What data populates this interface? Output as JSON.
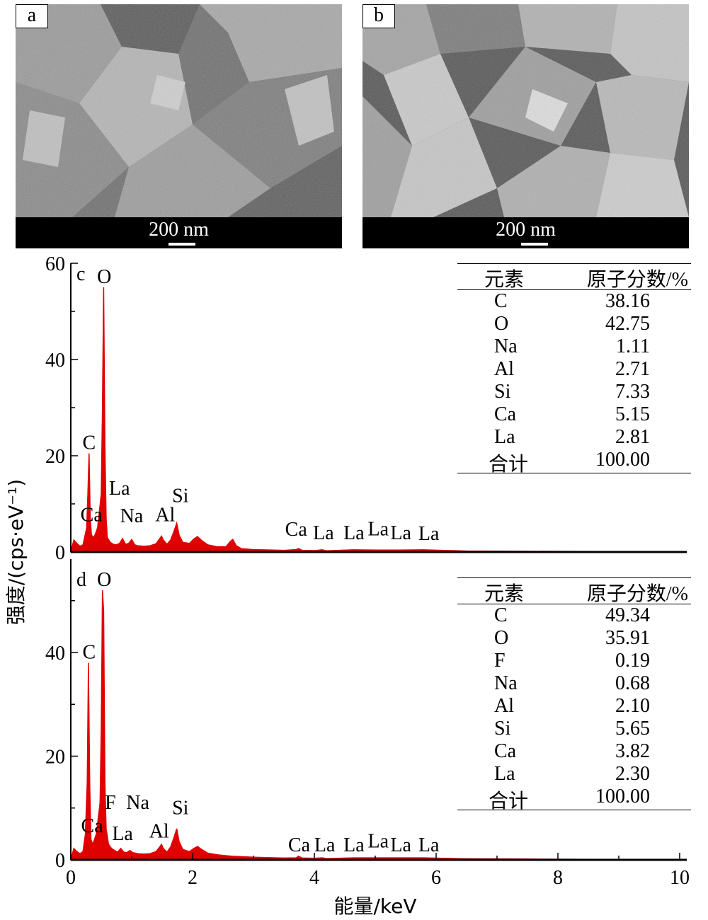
{
  "sem_panels": [
    {
      "label": "a",
      "scale_text": "200 nm"
    },
    {
      "label": "b",
      "scale_text": "200 nm"
    }
  ],
  "y_axis_label": "强度/(cps·eV⁻¹)",
  "x_axis_label": "能量/keV",
  "chart_data": [
    {
      "type": "area",
      "panel": "c",
      "x": [
        0,
        0.05,
        0.1,
        0.15,
        0.2,
        0.26,
        0.28,
        0.3,
        0.32,
        0.34,
        0.38,
        0.44,
        0.5,
        0.52,
        0.54,
        0.56,
        0.58,
        0.6,
        0.65,
        0.7,
        0.75,
        0.8,
        0.85,
        0.9,
        0.95,
        1.0,
        1.05,
        1.1,
        1.2,
        1.3,
        1.4,
        1.46,
        1.49,
        1.52,
        1.58,
        1.64,
        1.7,
        1.74,
        1.78,
        1.84,
        1.95,
        2.02,
        2.08,
        2.15,
        2.25,
        2.4,
        2.55,
        2.62,
        2.66,
        2.72,
        2.8,
        3.0,
        3.5,
        3.7,
        3.74,
        3.8,
        4.0,
        4.13,
        4.2,
        4.65,
        5.04,
        5.39,
        5.79,
        6.5,
        7.5,
        8.5,
        9.5,
        10
      ],
      "y": [
        0,
        2.5,
        1.8,
        1.2,
        1.5,
        5,
        12,
        20.5,
        7,
        3.5,
        3,
        5,
        12,
        30,
        55,
        22,
        7,
        3,
        2,
        1.6,
        1.5,
        1.8,
        2.8,
        1.6,
        1.8,
        2.6,
        1.5,
        1.3,
        1.2,
        1.3,
        1.7,
        2.8,
        3.3,
        2.5,
        1.6,
        2.5,
        4.5,
        6,
        3.5,
        2,
        1.8,
        2.7,
        3.2,
        2.4,
        1.5,
        1.1,
        1.1,
        2.2,
        2.6,
        1.3,
        0.7,
        0.5,
        0.35,
        0.5,
        0.7,
        0.35,
        0.3,
        0.45,
        0.25,
        0.45,
        0.4,
        0.4,
        0.45,
        0.2,
        0.15,
        0.1,
        0.05,
        0
      ],
      "xlim": [
        0,
        10
      ],
      "ylim": [
        0,
        60
      ],
      "yticks": [
        0,
        20,
        40,
        60
      ],
      "color": "#e00000",
      "annotations": [
        {
          "text": "O",
          "x": 0.55,
          "y": 55
        },
        {
          "text": "C",
          "x": 0.3,
          "y": 20.5
        },
        {
          "text": "La",
          "x": 0.8,
          "y": 11
        },
        {
          "text": "Ca",
          "x": 0.34,
          "y": 5.5
        },
        {
          "text": "Na",
          "x": 1.0,
          "y": 5.3
        },
        {
          "text": "Al",
          "x": 1.55,
          "y": 5.5
        },
        {
          "text": "Si",
          "x": 1.8,
          "y": 9.5
        },
        {
          "text": "Ca",
          "x": 3.7,
          "y": 2.5
        },
        {
          "text": "La",
          "x": 4.15,
          "y": 1.8
        },
        {
          "text": "La",
          "x": 4.65,
          "y": 1.8
        },
        {
          "text": "La",
          "x": 5.05,
          "y": 2.6
        },
        {
          "text": "La",
          "x": 5.42,
          "y": 1.8
        },
        {
          "text": "La",
          "x": 5.88,
          "y": 1.6
        }
      ],
      "table": {
        "headers": [
          "元素",
          "原子分数/%"
        ],
        "rows": [
          [
            "C",
            "38.16"
          ],
          [
            "O",
            "42.75"
          ],
          [
            "Na",
            "1.11"
          ],
          [
            "Al",
            "2.71"
          ],
          [
            "Si",
            "7.33"
          ],
          [
            "Ca",
            "5.15"
          ],
          [
            "La",
            "2.81"
          ]
        ],
        "total": [
          "合计",
          "100.00"
        ]
      }
    },
    {
      "type": "area",
      "panel": "d",
      "x": [
        0,
        0.05,
        0.1,
        0.15,
        0.2,
        0.24,
        0.27,
        0.29,
        0.31,
        0.33,
        0.36,
        0.42,
        0.48,
        0.5,
        0.52,
        0.54,
        0.56,
        0.58,
        0.62,
        0.67,
        0.72,
        0.77,
        0.82,
        0.87,
        0.92,
        0.97,
        1.02,
        1.1,
        1.2,
        1.3,
        1.4,
        1.46,
        1.49,
        1.52,
        1.58,
        1.64,
        1.7,
        1.74,
        1.78,
        1.84,
        1.95,
        2.02,
        2.08,
        2.15,
        2.25,
        2.4,
        2.55,
        2.65,
        3.0,
        3.5,
        3.7,
        3.74,
        3.8,
        4.0,
        4.13,
        4.2,
        4.65,
        5.04,
        5.39,
        5.79,
        6.5,
        7.5,
        8.5,
        9.5,
        10
      ],
      "y": [
        0,
        2.2,
        1.6,
        1.2,
        1.6,
        5,
        15,
        38,
        15,
        4,
        3,
        5,
        11,
        25,
        52,
        48,
        15,
        6,
        3,
        2.2,
        1.8,
        1.5,
        2.2,
        1.5,
        1.4,
        1.8,
        1.4,
        1.2,
        1.1,
        1.2,
        1.6,
        2.5,
        3,
        2.2,
        1.5,
        2.5,
        4.5,
        6,
        3.5,
        2,
        1.6,
        2.2,
        2.6,
        2,
        1.3,
        1.0,
        0.8,
        0.7,
        0.5,
        0.35,
        0.4,
        0.7,
        0.35,
        0.3,
        0.4,
        0.25,
        0.4,
        0.4,
        0.4,
        0.4,
        0.2,
        0.15,
        0.1,
        0.05,
        0
      ],
      "xlim": [
        0,
        10
      ],
      "ylim": [
        0,
        55
      ],
      "xticks": [
        0,
        2,
        4,
        6,
        8,
        10
      ],
      "yticks": [
        0,
        20,
        40
      ],
      "color": "#e00000",
      "annotations": [
        {
          "text": "O",
          "x": 0.55,
          "y": 52
        },
        {
          "text": "C",
          "x": 0.3,
          "y": 38
        },
        {
          "text": "F",
          "x": 0.65,
          "y": 9
        },
        {
          "text": "Na",
          "x": 1.1,
          "y": 9
        },
        {
          "text": "Ca",
          "x": 0.35,
          "y": 4.5
        },
        {
          "text": "La",
          "x": 0.85,
          "y": 3
        },
        {
          "text": "Al",
          "x": 1.45,
          "y": 3.5
        },
        {
          "text": "Si",
          "x": 1.8,
          "y": 8
        },
        {
          "text": "Ca",
          "x": 3.75,
          "y": 0.8
        },
        {
          "text": "La",
          "x": 4.17,
          "y": 0.8
        },
        {
          "text": "La",
          "x": 4.65,
          "y": 0.8
        },
        {
          "text": "La",
          "x": 5.05,
          "y": 1.6
        },
        {
          "text": "La",
          "x": 5.42,
          "y": 0.8
        },
        {
          "text": "La",
          "x": 5.88,
          "y": 0.8
        }
      ],
      "table": {
        "headers": [
          "元素",
          "原子分数/%"
        ],
        "rows": [
          [
            "C",
            "49.34"
          ],
          [
            "O",
            "35.91"
          ],
          [
            "F",
            "0.19"
          ],
          [
            "Na",
            "0.68"
          ],
          [
            "Al",
            "2.10"
          ],
          [
            "Si",
            "5.65"
          ],
          [
            "Ca",
            "3.82"
          ],
          [
            "La",
            "2.30"
          ]
        ],
        "total": [
          "合计",
          "100.00"
        ]
      }
    }
  ]
}
